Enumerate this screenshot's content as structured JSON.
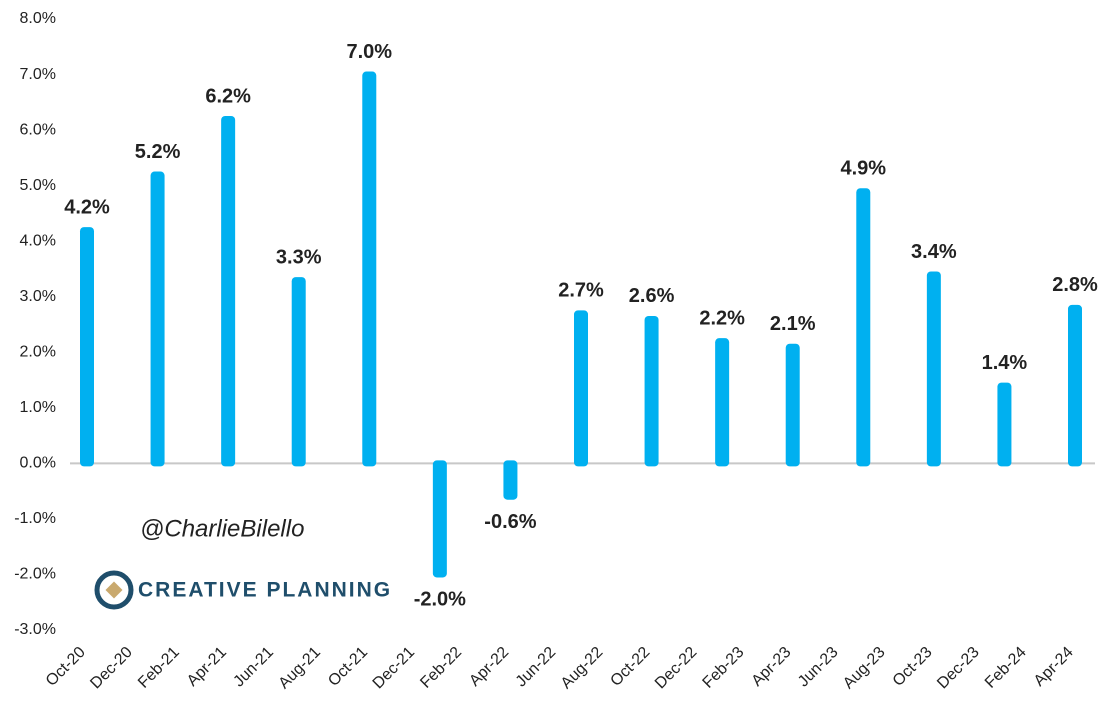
{
  "chart_data": {
    "type": "bar",
    "x_labels": [
      "Oct-20",
      "Dec-20",
      "Feb-21",
      "Apr-21",
      "Jun-21",
      "Aug-21",
      "Oct-21",
      "Dec-21",
      "Feb-22",
      "Apr-22",
      "Jun-22",
      "Aug-22",
      "Oct-22",
      "Dec-22",
      "Feb-23",
      "Apr-23",
      "Jun-23",
      "Aug-23",
      "Oct-23",
      "Dec-23",
      "Feb-24",
      "Apr-24"
    ],
    "values": [
      4.2,
      5.2,
      6.2,
      3.3,
      7.0,
      -2.0,
      -0.6,
      2.7,
      2.6,
      2.2,
      2.1,
      4.9,
      3.4,
      1.4,
      2.8
    ],
    "value_labels": [
      "4.2%",
      "5.2%",
      "6.2%",
      "3.3%",
      "7.0%",
      "-2.0%",
      "-0.6%",
      "2.7%",
      "2.6%",
      "2.2%",
      "2.1%",
      "4.9%",
      "3.4%",
      "1.4%",
      "2.8%"
    ],
    "color": "#00b0f0",
    "ylim": [
      -3,
      8
    ],
    "yticks": [
      {
        "value": -3,
        "label": "-3.0%"
      },
      {
        "value": -2,
        "label": "-2.0%"
      },
      {
        "value": -1,
        "label": "-1.0%"
      },
      {
        "value": 0,
        "label": "0.0%"
      },
      {
        "value": 1,
        "label": "1.0%"
      },
      {
        "value": 2,
        "label": "2.0%"
      },
      {
        "value": 3,
        "label": "3.0%"
      },
      {
        "value": 4,
        "label": "4.0%"
      },
      {
        "value": 5,
        "label": "5.0%"
      },
      {
        "value": 6,
        "label": "6.0%"
      },
      {
        "value": 7,
        "label": "7.0%"
      },
      {
        "value": 8,
        "label": "8.0%"
      }
    ],
    "watermark": "@CharlieBilello",
    "logo_text": "CREATIVE PLANNING"
  }
}
